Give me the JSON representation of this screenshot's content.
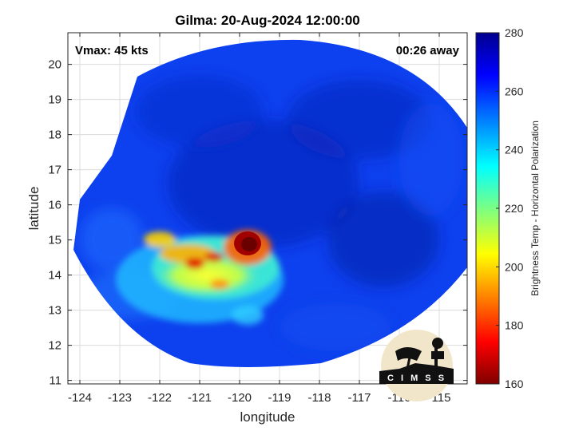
{
  "title": "Gilma: 20-Aug-2024 12:00:00",
  "annotations": {
    "vmax": "Vmax: 45 kts",
    "time_away": "00:26 away"
  },
  "logo": {
    "text": "C I M S S",
    "name": "cimss-logo"
  },
  "chart_data": {
    "type": "heatmap",
    "title": "Gilma: 20-Aug-2024 12:00:00",
    "xlabel": "longitude",
    "ylabel": "latitude",
    "xlim": [
      -124.3,
      -114.3
    ],
    "ylim": [
      10.9,
      20.9
    ],
    "x_ticks": [
      -124,
      -123,
      -122,
      -121,
      -120,
      -119,
      -118,
      -117,
      -116,
      -115
    ],
    "x_tick_labels": [
      "-124",
      "-123",
      "-122",
      "-121",
      "-120",
      "-119",
      "-118",
      "-117",
      "-116",
      "-115"
    ],
    "y_ticks": [
      11,
      12,
      13,
      14,
      15,
      16,
      17,
      18,
      19,
      20
    ],
    "y_tick_labels": [
      "11",
      "12",
      "13",
      "14",
      "15",
      "16",
      "17",
      "18",
      "19",
      "20"
    ],
    "grid": true,
    "colorbar": {
      "label": "Brightness Temp - Horizontal Polarization",
      "range": [
        160,
        280
      ],
      "ticks": [
        160,
        180,
        200,
        220,
        240,
        260,
        280
      ],
      "tick_labels": [
        "160",
        "180",
        "200",
        "220",
        "240",
        "260",
        "280"
      ],
      "colormap": "jet"
    },
    "features": [
      {
        "name": "cold-core",
        "lon": -119.75,
        "lat": 15.1,
        "value": 165
      },
      {
        "name": "warm-background",
        "value": 265
      }
    ],
    "colors": {
      "swath_base": "#0d3cf0",
      "swath_dark": "#0a1fb8",
      "core": "#7a0000"
    }
  }
}
